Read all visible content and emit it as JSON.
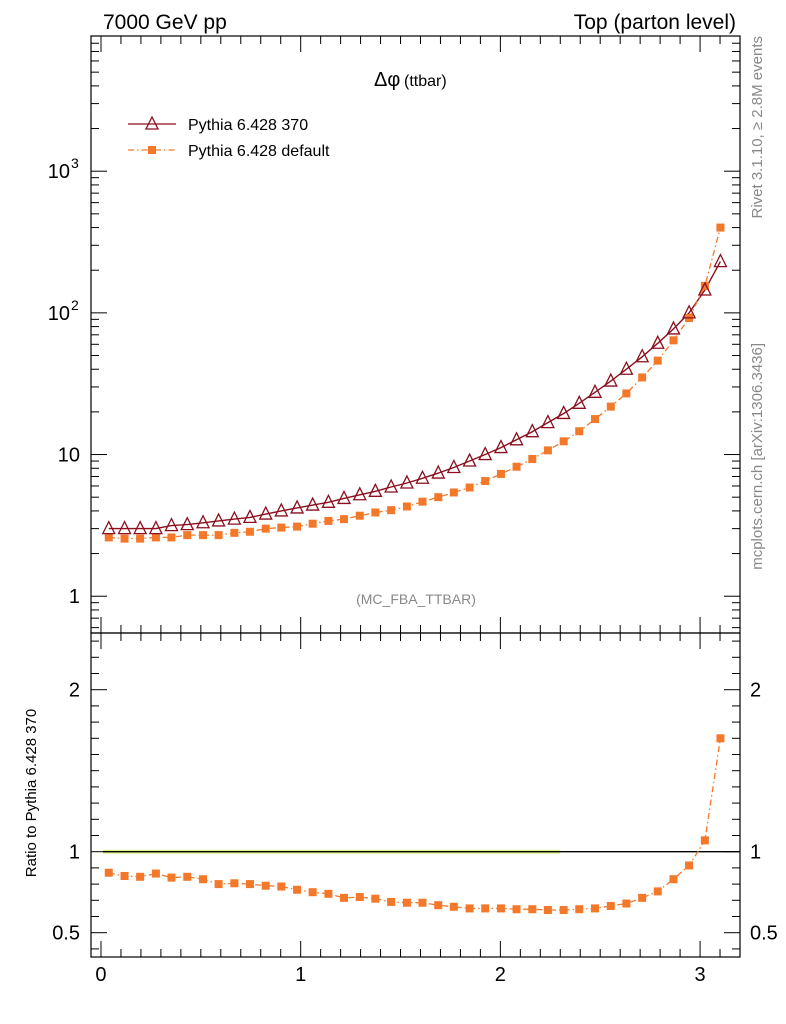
{
  "header": {
    "left": "7000 GeV pp",
    "right": "Top (parton level)"
  },
  "plot_title": {
    "symbol": "Δφ",
    "suffix": "(ttbar)"
  },
  "analysis_label": "(MC_FBA_TTBAR)",
  "side_labels": {
    "rivet": "Rivet 3.1.10, ≥ 2.8M events",
    "mcplots": "mcplots.cern.ch [arXiv:1306.3436]"
  },
  "ratio_ylabel": "Ratio to Pythia 6.428 370",
  "colors": {
    "ref": "#8b0f1e",
    "default": "#f4782a",
    "band": "#d8f07a"
  },
  "chart_data": [
    {
      "type": "line",
      "panel": "main",
      "y_scale": "log",
      "xlim": [
        -0.05,
        3.2
      ],
      "ylim": [
        0.55,
        9000
      ],
      "y_ticks": [
        {
          "value": 1,
          "label": "1"
        },
        {
          "value": 10,
          "label": "10"
        },
        {
          "value": 100,
          "label": "10",
          "exp": "2"
        },
        {
          "value": 1000,
          "label": "10",
          "exp": "3"
        }
      ],
      "x": [
        0.039,
        0.118,
        0.196,
        0.275,
        0.353,
        0.432,
        0.511,
        0.589,
        0.668,
        0.746,
        0.825,
        0.903,
        0.982,
        1.06,
        1.139,
        1.217,
        1.296,
        1.374,
        1.453,
        1.532,
        1.61,
        1.689,
        1.767,
        1.846,
        1.924,
        2.003,
        2.081,
        2.16,
        2.238,
        2.317,
        2.395,
        2.474,
        2.553,
        2.631,
        2.71,
        2.788,
        2.867,
        2.945,
        3.024,
        3.102
      ],
      "series": [
        {
          "name": "Pythia 6.428 370",
          "marker": "triangle-open",
          "values": [
            3.0,
            3.0,
            3.0,
            3.0,
            3.15,
            3.2,
            3.3,
            3.4,
            3.5,
            3.6,
            3.8,
            4.0,
            4.2,
            4.4,
            4.6,
            4.9,
            5.2,
            5.5,
            5.9,
            6.3,
            6.8,
            7.4,
            8.1,
            9.0,
            10.0,
            11.2,
            12.7,
            14.5,
            16.8,
            19.5,
            23.0,
            27.5,
            33.0,
            40.0,
            49.0,
            61.0,
            77.0,
            100.0,
            145.0,
            230.0
          ]
        },
        {
          "name": "Pythia 6.428 default",
          "marker": "square-filled",
          "values": [
            2.6,
            2.55,
            2.55,
            2.6,
            2.6,
            2.7,
            2.7,
            2.7,
            2.8,
            2.85,
            3.0,
            3.05,
            3.1,
            3.25,
            3.4,
            3.5,
            3.7,
            3.9,
            4.05,
            4.3,
            4.65,
            5.0,
            5.4,
            5.85,
            6.5,
            7.3,
            8.2,
            9.3,
            10.7,
            12.4,
            14.6,
            17.8,
            21.8,
            27.0,
            35.0,
            46.0,
            64.0,
            92.0,
            155.0,
            400.0
          ]
        }
      ]
    },
    {
      "type": "line",
      "panel": "ratio",
      "xlim": [
        -0.05,
        3.2
      ],
      "ylim": [
        0.35,
        2.35
      ],
      "y_ticks": [
        {
          "value": 0.5,
          "label": "0.5"
        },
        {
          "value": 1,
          "label": "1"
        },
        {
          "value": 2,
          "label": "2"
        }
      ],
      "x_ticks": [
        {
          "value": 0,
          "label": "0"
        },
        {
          "value": 1,
          "label": "1"
        },
        {
          "value": 2,
          "label": "2"
        },
        {
          "value": 3,
          "label": "3"
        }
      ],
      "x": [
        0.039,
        0.118,
        0.196,
        0.275,
        0.353,
        0.432,
        0.511,
        0.589,
        0.668,
        0.746,
        0.825,
        0.903,
        0.982,
        1.06,
        1.139,
        1.217,
        1.296,
        1.374,
        1.453,
        1.532,
        1.61,
        1.689,
        1.767,
        1.846,
        1.924,
        2.003,
        2.081,
        2.16,
        2.238,
        2.317,
        2.395,
        2.474,
        2.553,
        2.631,
        2.71,
        2.788,
        2.867,
        2.945,
        3.024,
        3.102
      ],
      "series": [
        {
          "name": "Pythia 6.428 default",
          "values": [
            0.87,
            0.85,
            0.845,
            0.865,
            0.84,
            0.845,
            0.83,
            0.8,
            0.805,
            0.8,
            0.79,
            0.785,
            0.765,
            0.75,
            0.74,
            0.715,
            0.72,
            0.71,
            0.69,
            0.685,
            0.685,
            0.67,
            0.66,
            0.65,
            0.65,
            0.65,
            0.645,
            0.645,
            0.64,
            0.64,
            0.645,
            0.65,
            0.665,
            0.68,
            0.715,
            0.755,
            0.83,
            0.915,
            1.07,
            1.7
          ]
        }
      ],
      "reference_line": 1.0
    }
  ]
}
